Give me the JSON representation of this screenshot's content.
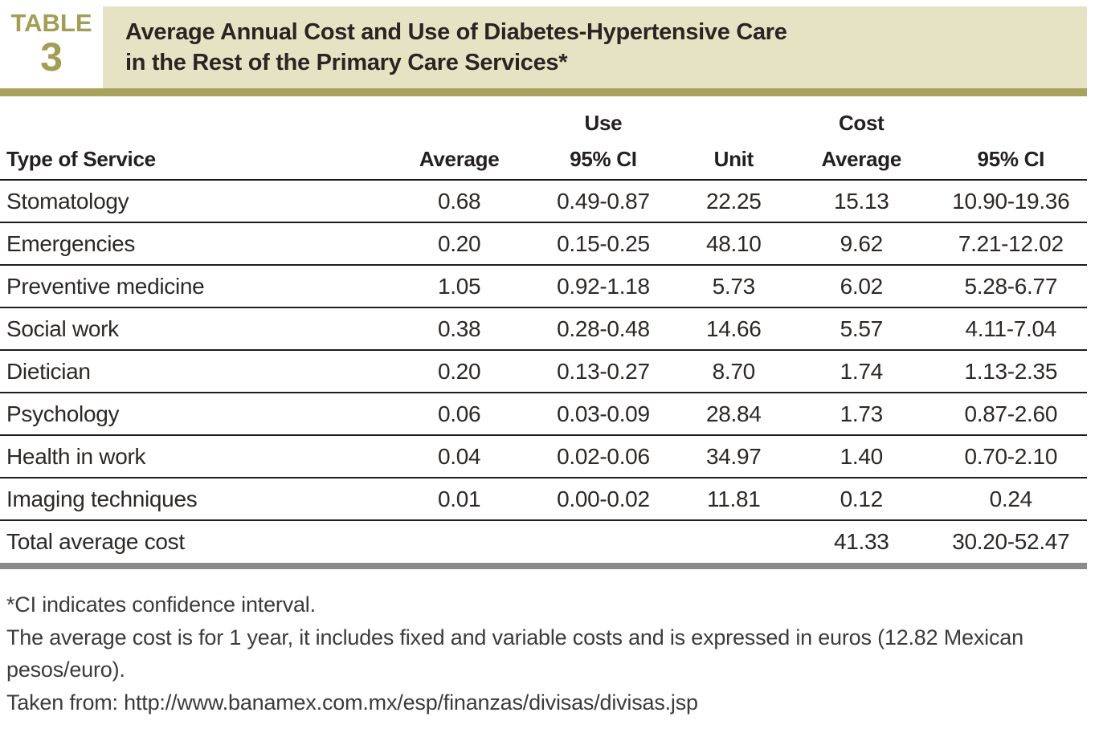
{
  "label": {
    "word": "TABLE",
    "number": "3"
  },
  "title": {
    "line1": "Average Annual Cost and Use of Diabetes-Hypertensive Care",
    "line2": "in the Rest of the Primary Care Services*"
  },
  "table": {
    "group_headers": {
      "use": "Use",
      "cost": "Cost"
    },
    "columns": {
      "service": "Type of Service",
      "use_average": "Average",
      "use_ci": "95% CI",
      "unit": "Unit",
      "cost_average": "Average",
      "cost_ci": "95% CI"
    },
    "rows": [
      {
        "service": "Stomatology",
        "use_average": "0.68",
        "use_ci": "0.49-0.87",
        "unit": "22.25",
        "cost_average": "15.13",
        "cost_ci": "10.90-19.36"
      },
      {
        "service": "Emergencies",
        "use_average": "0.20",
        "use_ci": "0.15-0.25",
        "unit": "48.10",
        "cost_average": "9.62",
        "cost_ci": "7.21-12.02"
      },
      {
        "service": "Preventive medicine",
        "use_average": "1.05",
        "use_ci": "0.92-1.18",
        "unit": "5.73",
        "cost_average": "6.02",
        "cost_ci": "5.28-6.77"
      },
      {
        "service": "Social work",
        "use_average": "0.38",
        "use_ci": "0.28-0.48",
        "unit": "14.66",
        "cost_average": "5.57",
        "cost_ci": "4.11-7.04"
      },
      {
        "service": "Dietician",
        "use_average": "0.20",
        "use_ci": "0.13-0.27",
        "unit": "8.70",
        "cost_average": "1.74",
        "cost_ci": "1.13-2.35"
      },
      {
        "service": "Psychology",
        "use_average": "0.06",
        "use_ci": "0.03-0.09",
        "unit": "28.84",
        "cost_average": "1.73",
        "cost_ci": "0.87-2.60"
      },
      {
        "service": "Health in work",
        "use_average": "0.04",
        "use_ci": "0.02-0.06",
        "unit": "34.97",
        "cost_average": "1.40",
        "cost_ci": "0.70-2.10"
      },
      {
        "service": "Imaging techniques",
        "use_average": "0.01",
        "use_ci": "0.00-0.02",
        "unit": "11.81",
        "cost_average": "0.12",
        "cost_ci": "0.24"
      },
      {
        "service": "Total average cost",
        "use_average": "",
        "use_ci": "",
        "unit": "",
        "cost_average": "41.33",
        "cost_ci": "30.20-52.47"
      }
    ]
  },
  "footnotes": [
    "*CI indicates confidence interval.",
    "The average cost is for 1 year, it includes fixed and variable costs and is expressed in euros (12.82 Mexican pesos/euro).",
    "Taken from: http://www.banamex.com.mx/esp/finanzas/divisas/divisas.jsp"
  ],
  "colors": {
    "accent_olive": "#a9a25c",
    "label_olive": "#a39d55",
    "title_box_beige": "#e6e3c4",
    "rule_dark": "#1d1d1b",
    "bottom_bar_gray": "#8a8a8a",
    "text_dark": "#262220"
  }
}
